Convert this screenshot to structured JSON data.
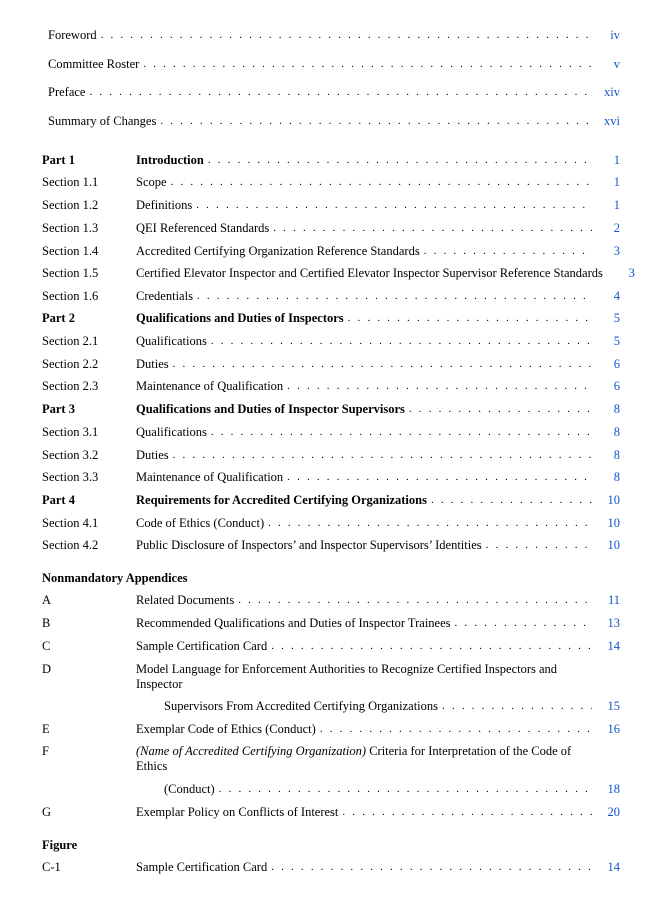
{
  "front": [
    {
      "title": "Foreword",
      "page": "iv"
    },
    {
      "title": "Committee Roster",
      "page": "v"
    },
    {
      "title": "Preface",
      "page": "xiv"
    },
    {
      "title": "Summary of Changes",
      "page": "xvi"
    }
  ],
  "main": [
    {
      "label": "Part 1",
      "title": "Introduction",
      "page": "1",
      "bold": true
    },
    {
      "label": "Section 1.1",
      "title": "Scope",
      "page": "1"
    },
    {
      "label": "Section 1.2",
      "title": "Definitions",
      "page": "1"
    },
    {
      "label": "Section 1.3",
      "title": "QEI Referenced Standards",
      "page": "2"
    },
    {
      "label": "Section 1.4",
      "title": "Accredited Certifying Organization Reference Standards",
      "page": "3"
    },
    {
      "label": "Section 1.5",
      "title": "Certified Elevator Inspector and Certified Elevator Inspector Supervisor Reference Standards",
      "page": "3",
      "nodots": true
    },
    {
      "label": "Section 1.6",
      "title": "Credentials",
      "page": "4"
    },
    {
      "label": "Part 2",
      "title": "Qualifications and Duties of Inspectors",
      "page": "5",
      "bold": true
    },
    {
      "label": "Section 2.1",
      "title": "Qualifications",
      "page": "5"
    },
    {
      "label": "Section 2.2",
      "title": "Duties",
      "page": "6"
    },
    {
      "label": "Section 2.3",
      "title": "Maintenance of Qualification",
      "page": "6"
    },
    {
      "label": "Part 3",
      "title": "Qualifications and Duties of Inspector Supervisors",
      "page": "8",
      "bold": true
    },
    {
      "label": "Section 3.1",
      "title": "Qualifications",
      "page": "8"
    },
    {
      "label": "Section 3.2",
      "title": "Duties",
      "page": "8"
    },
    {
      "label": "Section 3.3",
      "title": "Maintenance of Qualification",
      "page": "8"
    },
    {
      "label": "Part 4",
      "title": "Requirements for Accredited Certifying Organizations",
      "page": "10",
      "bold": true
    },
    {
      "label": "Section 4.1",
      "title": "Code of Ethics (Conduct)",
      "page": "10"
    },
    {
      "label": "Section 4.2",
      "title": "Public Disclosure of Inspectors’ and Inspector Supervisors’ Identities",
      "page": "10"
    }
  ],
  "appendicesHeading": "Nonmandatory Appendices",
  "appendices": [
    {
      "label": "A",
      "title": "Related Documents",
      "page": "11"
    },
    {
      "label": "B",
      "title": "Recommended Qualifications and Duties of Inspector Trainees",
      "page": "13"
    },
    {
      "label": "C",
      "title": "Sample Certification Card",
      "page": "14"
    },
    {
      "label": "D",
      "title": "Model Language for Enforcement Authorities to Recognize Certified Inspectors and Inspector",
      "cont": "Supervisors From Accredited Certifying Organizations",
      "page": "15"
    },
    {
      "label": "E",
      "title": "Exemplar Code of Ethics (Conduct)",
      "page": "16"
    },
    {
      "label": "F",
      "titleItalicPrefix": "(Name of Accredited Certifying Organization)",
      "titleRest": " Criteria for Interpretation of the Code of Ethics",
      "cont": "(Conduct)",
      "page": "18"
    },
    {
      "label": "G",
      "title": "Exemplar Policy on Conflicts of Interest",
      "page": "20"
    }
  ],
  "figureHeading": "Figure",
  "figures": [
    {
      "label": "C-1",
      "title": "Sample Certification Card",
      "page": "14"
    }
  ]
}
